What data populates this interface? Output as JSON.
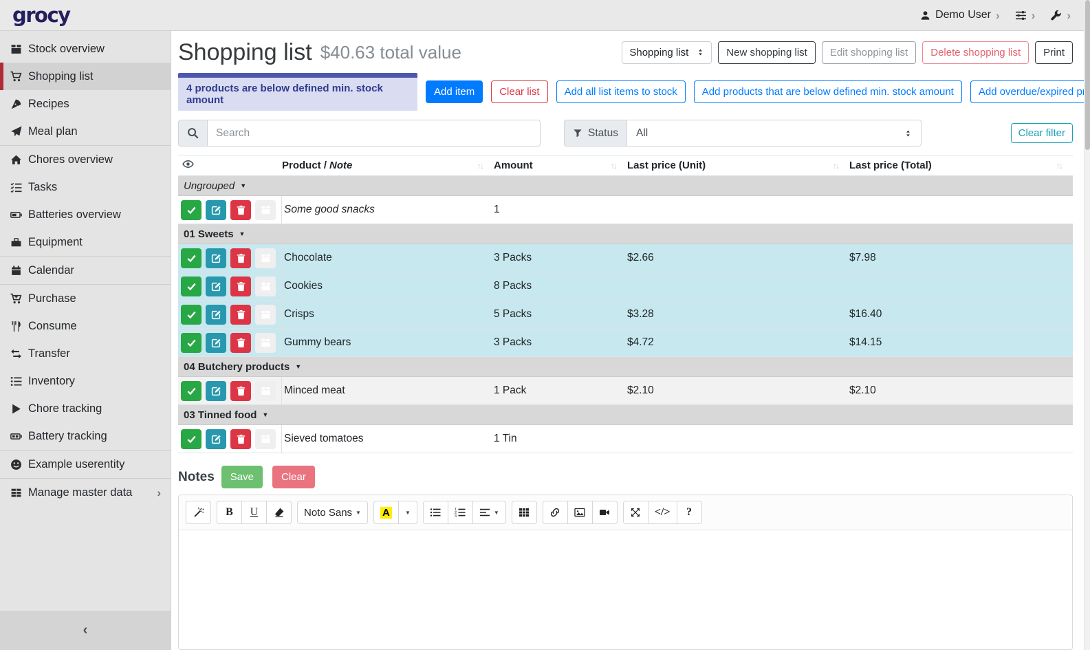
{
  "topbar": {
    "logo": "grocy",
    "user_label": "Demo User",
    "icons": [
      "user-icon",
      "chevron-right-icon",
      "sliders-icon",
      "wrench-icon"
    ]
  },
  "sidebar": {
    "items": [
      {
        "icon": "box",
        "label": "Stock overview"
      },
      {
        "icon": "cart",
        "label": "Shopping list",
        "active": true
      },
      {
        "icon": "pizza",
        "label": "Recipes"
      },
      {
        "icon": "plane",
        "label": "Meal plan",
        "divider_after": true
      },
      {
        "icon": "home",
        "label": "Chores overview"
      },
      {
        "icon": "tasks",
        "label": "Tasks"
      },
      {
        "icon": "battery",
        "label": "Batteries overview"
      },
      {
        "icon": "toolbox",
        "label": "Equipment",
        "divider_after": true
      },
      {
        "icon": "calendar",
        "label": "Calendar",
        "divider_after": true
      },
      {
        "icon": "cart-plus",
        "label": "Purchase"
      },
      {
        "icon": "utensils",
        "label": "Consume"
      },
      {
        "icon": "exchange",
        "label": "Transfer"
      },
      {
        "icon": "list",
        "label": "Inventory"
      },
      {
        "icon": "play",
        "label": "Chore tracking"
      },
      {
        "icon": "battery-duo",
        "label": "Battery tracking",
        "divider_after": true
      },
      {
        "icon": "smiley",
        "label": "Example userentity",
        "divider_after": true
      },
      {
        "icon": "table-grid",
        "label": "Manage master data",
        "chevron": true
      }
    ]
  },
  "header": {
    "title": "Shopping list",
    "subtitle": "$40.63 total value",
    "list_select": "Shopping list",
    "buttons": {
      "new": "New shopping list",
      "edit": "Edit shopping list",
      "delete": "Delete shopping list",
      "print": "Print"
    }
  },
  "alert": {
    "text": "4 products are below defined min. stock amount"
  },
  "actions": [
    {
      "label": "Add item",
      "style": "primary"
    },
    {
      "label": "Clear list",
      "style": "danger-outline"
    },
    {
      "label": "Add all list items to stock",
      "style": "primary-outline"
    },
    {
      "label": "Add products that are below defined min. stock amount",
      "style": "primary-outline"
    },
    {
      "label": "Add overdue/expired products",
      "style": "primary-outline"
    }
  ],
  "filters": {
    "search_placeholder": "Search",
    "status_label": "Status",
    "status_value": "All",
    "clear_filter": "Clear filter"
  },
  "table": {
    "header": {
      "product": "Product /",
      "note": "Note",
      "amount": "Amount",
      "unit": "Last price (Unit)",
      "total": "Last price (Total)"
    },
    "row_actions": [
      "done",
      "edit",
      "delete",
      "add-to-stock"
    ],
    "groups": [
      {
        "name": "Ungrouped",
        "italic": true,
        "rows": [
          {
            "product": "Some good snacks",
            "is_note": true,
            "amount": "1",
            "unit_price": "",
            "total_price": "",
            "tone": "white",
            "stock_light": true
          }
        ]
      },
      {
        "name": "01 Sweets",
        "rows": [
          {
            "product": "Chocolate",
            "amount": "3 Packs",
            "unit_price": "$2.66",
            "total_price": "$7.98",
            "tone": "cyan"
          },
          {
            "product": "Cookies",
            "amount": "8 Packs",
            "unit_price": "",
            "total_price": "",
            "tone": "cyan"
          },
          {
            "product": "Crisps",
            "amount": "5 Packs",
            "unit_price": "$3.28",
            "total_price": "$16.40",
            "tone": "cyan"
          },
          {
            "product": "Gummy bears",
            "amount": "3 Packs",
            "unit_price": "$4.72",
            "total_price": "$14.15",
            "tone": "cyan"
          }
        ]
      },
      {
        "name": "04 Butchery products",
        "rows": [
          {
            "product": "Minced meat",
            "amount": "1 Pack",
            "unit_price": "$2.10",
            "total_price": "$2.10",
            "tone": "gray"
          }
        ]
      },
      {
        "name": "03 Tinned food",
        "rows": [
          {
            "product": "Sieved tomatoes",
            "amount": "1 Tin",
            "unit_price": "",
            "total_price": "",
            "tone": "white"
          }
        ]
      }
    ]
  },
  "notes": {
    "heading": "Notes",
    "save": "Save",
    "clear": "Clear"
  },
  "editor": {
    "font_name": "Noto Sans",
    "toolbar_groups": [
      [
        "magic"
      ],
      [
        "bold",
        "underline",
        "eraser"
      ],
      [
        "font"
      ],
      [
        "highlight",
        "hl-caret"
      ],
      [
        "ul",
        "ol",
        "align"
      ],
      [
        "table"
      ],
      [
        "link",
        "picture",
        "video"
      ],
      [
        "arrows",
        "codeview",
        "help"
      ]
    ]
  },
  "colors": {
    "accent_red": "#ae2a36",
    "primary": "#007bff",
    "danger": "#dc3545",
    "teal": "#17a2b8",
    "success": "#28a745",
    "edit_teal": "#2798ad",
    "stock_blue": "#0d7ce8",
    "row_highlight": "#c7e8ee",
    "alert_bg": "#dadcf2",
    "alert_bar": "#4c58b0",
    "group_row": "#d8d8d8"
  }
}
